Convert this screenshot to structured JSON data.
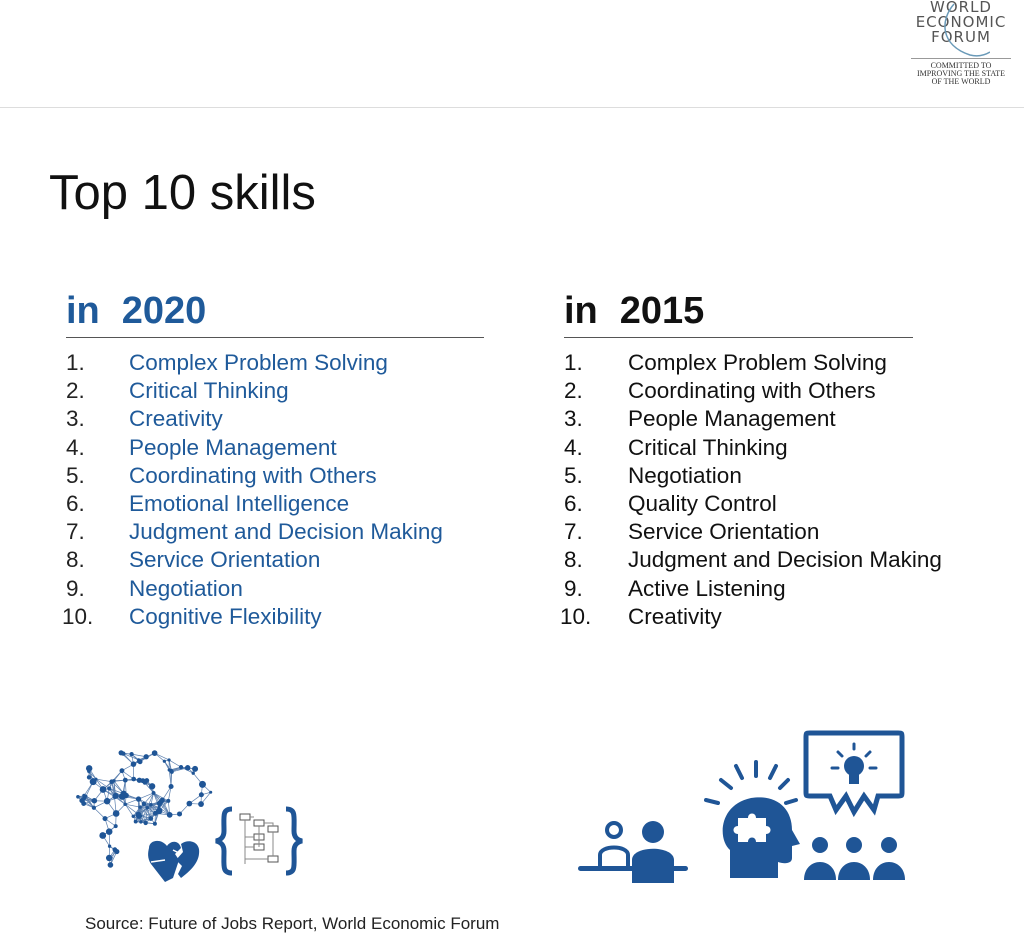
{
  "logo": {
    "lines": [
      "WORLD",
      "ECONOMIC",
      "FORUM"
    ],
    "tagline": [
      "COMMITTED TO",
      "IMPROVING THE STATE",
      "OF THE WORLD"
    ]
  },
  "title": "Top 10 skills",
  "columns": [
    {
      "prefix": "in",
      "year": "2020",
      "color": "#1f5a9a",
      "items": [
        {
          "num": "1.",
          "label": "Complex Problem Solving"
        },
        {
          "num": "2.",
          "label": "Critical Thinking"
        },
        {
          "num": "3.",
          "label": "Creativity"
        },
        {
          "num": "4.",
          "label": "People Management"
        },
        {
          "num": "5.",
          "label": "Coordinating with Others"
        },
        {
          "num": "6.",
          "label": "Emotional Intelligence"
        },
        {
          "num": "7.",
          "label": "Judgment and Decision Making"
        },
        {
          "num": "8.",
          "label": "Service Orientation"
        },
        {
          "num": "9.",
          "label": "Negotiation"
        },
        {
          "num": "10.",
          "label": "Cognitive Flexibility"
        }
      ]
    },
    {
      "prefix": "in",
      "year": "2015",
      "color": "#111111",
      "items": [
        {
          "num": "1.",
          "label": "Complex Problem Solving"
        },
        {
          "num": "2.",
          "label": "Coordinating with Others"
        },
        {
          "num": "3.",
          "label": "People Management"
        },
        {
          "num": "4.",
          "label": "Critical Thinking"
        },
        {
          "num": "5.",
          "label": "Negotiation"
        },
        {
          "num": "6.",
          "label": "Quality Control"
        },
        {
          "num": "7.",
          "label": "Service Orientation"
        },
        {
          "num": "8.",
          "label": "Judgment and Decision Making"
        },
        {
          "num": "9.",
          "label": "Active Listening"
        },
        {
          "num": "10.",
          "label": "Creativity"
        }
      ]
    }
  ],
  "icons": {
    "left": [
      "brain-network-icon",
      "puzzle-heart-icon",
      "flowchart-braces-icon"
    ],
    "right": [
      "people-at-desk-icon",
      "head-puzzle-icon",
      "lightbulb-presentation-icon"
    ],
    "color": "#1f5596"
  },
  "source": "Source: Future of Jobs Report, World Economic Forum"
}
